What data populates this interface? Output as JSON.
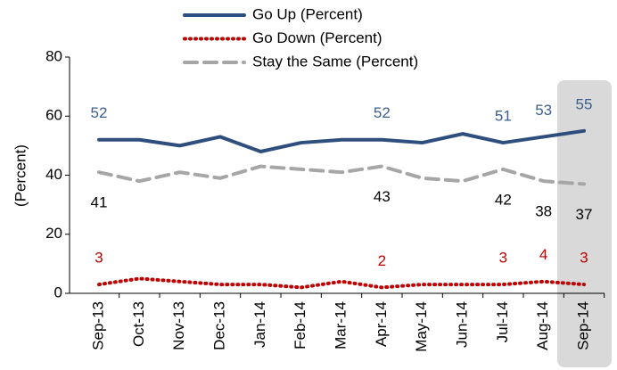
{
  "chart_data": {
    "type": "line",
    "y_label": "(Percent)",
    "categories": [
      "Sep-13",
      "Oct-13",
      "Nov-13",
      "Dec-13",
      "Jan-14",
      "Feb-14",
      "Mar-14",
      "Apr-14",
      "May-14",
      "Jun-14",
      "Jul-14",
      "Aug-14",
      "Sep-14"
    ],
    "series": [
      {
        "name": "Go Up (Percent)",
        "color": "#2e4e7e",
        "label_color": "#3c5f8e",
        "dash": "solid",
        "values": [
          52,
          52,
          50,
          53,
          48,
          51,
          52,
          52,
          51,
          54,
          51,
          53,
          55
        ]
      },
      {
        "name": "Go Down (Percent)",
        "color": "#c00000",
        "label_color": "#c00000",
        "dash": "dotted",
        "values": [
          3,
          5,
          4,
          3,
          3,
          2,
          4,
          2,
          3,
          3,
          3,
          4,
          3
        ]
      },
      {
        "name": "Stay the Same (Percent)",
        "color": "#a6a6a6",
        "label_color": "#000000",
        "dash": "dashed",
        "values": [
          41,
          38,
          41,
          39,
          43,
          42,
          41,
          43,
          39,
          38,
          42,
          38,
          37
        ]
      }
    ],
    "labeled_indices": [
      0,
      7,
      10,
      11,
      12
    ],
    "highlight_index": 12,
    "ylim": [
      0,
      80
    ],
    "yticks": [
      0,
      20,
      40,
      60,
      80
    ]
  }
}
